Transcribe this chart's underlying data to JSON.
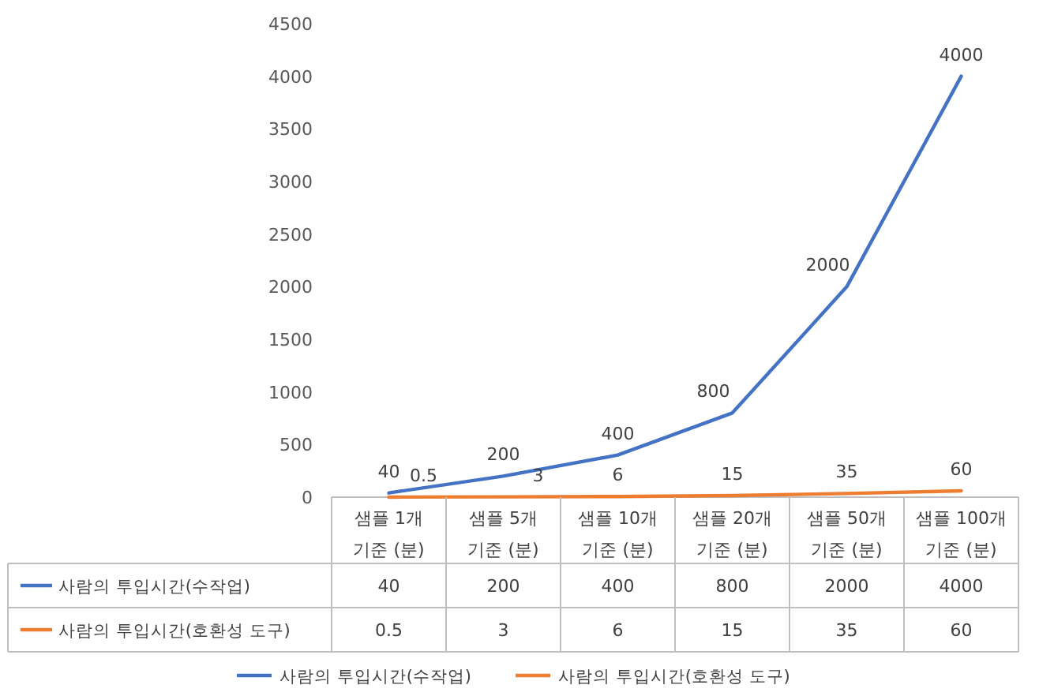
{
  "chart_data": {
    "type": "line",
    "categories": [
      "샘플 1개 기준 (분)",
      "샘플 5개 기준 (분)",
      "샘플 10개 기준 (분)",
      "샘플 20개 기준 (분)",
      "샘플 50개 기준 (분)",
      "샘플 100개 기준 (분)"
    ],
    "series": [
      {
        "name": "사람의 투입시간(수작업)",
        "color": "#4472c4",
        "values": [
          40,
          200,
          400,
          800,
          2000,
          4000
        ]
      },
      {
        "name": "사람의 투입시간(호환성 도구)",
        "color": "#ed7d31",
        "values": [
          0.5,
          3,
          6,
          15,
          35,
          60
        ]
      }
    ],
    "annotations": [
      {
        "text": "40",
        "x": "샘플 1개 기준 (분)",
        "y": 40
      },
      {
        "text": "200",
        "x": "샘플 5개 기준 (분)",
        "y": 200
      },
      {
        "text": "400",
        "x": "샘플 10개 기준 (분)",
        "y": 400
      },
      {
        "text": "800",
        "x": "샘플 20개 기준 (분)",
        "y": 800
      },
      {
        "text": "2000",
        "x": "샘플 50개 기준 (분)",
        "y": 2000
      },
      {
        "text": "4000",
        "x": "샘플 100개 기준 (분)",
        "y": 4000
      },
      {
        "text": "0.5",
        "x": "샘플 1개 기준 (분)",
        "y": 0.5
      },
      {
        "text": "3",
        "x": "샘플 5개 기준 (분)",
        "y": 3
      },
      {
        "text": "6",
        "x": "샘플 10개 기준 (분)",
        "y": 6
      },
      {
        "text": "15",
        "x": "샘플 20개 기준 (분)",
        "y": 15
      },
      {
        "text": "35",
        "x": "샘플 50개 기준 (분)",
        "y": 35
      },
      {
        "text": "60",
        "x": "샘플 100개 기준 (분)",
        "y": 60
      }
    ],
    "ylim": [
      0,
      4500
    ],
    "yticks": [
      0,
      500,
      1000,
      1500,
      2000,
      2500,
      3000,
      3500,
      4000,
      4500
    ],
    "data_labels": true,
    "grid": false,
    "legend": "bottom",
    "marker": "none",
    "line_style": "solid"
  }
}
